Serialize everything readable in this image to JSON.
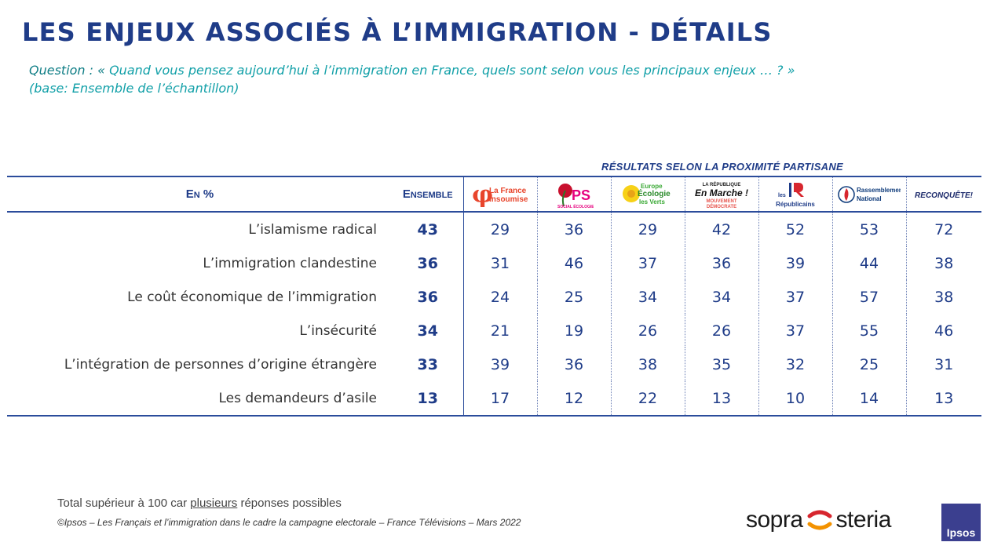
{
  "title": "LES ENJEUX ASSOCIÉS À L’IMMIGRATION - DÉTAILS",
  "question": {
    "lead": "Question : «",
    "text": " Quand vous pensez aujourd’hui à l’immigration en France, quels sont selon vous les principaux enjeux … ? »",
    "base": "(base: Ensemble de l’échantillon)"
  },
  "subtitle": "RÉSULTATS SELON LA PROXIMITÉ PARTISANE",
  "table": {
    "header_label": "En %",
    "ensemble_label": "Ensemble",
    "parties": [
      {
        "name": "La France insoumise",
        "line1": "La France",
        "line2": "insoumise",
        "color": "#e8452c"
      },
      {
        "name": "PS",
        "line1": "PS",
        "line2": "SOCIAL ÉCOLOGIE",
        "color": "#e6007e"
      },
      {
        "name": "Europe Écologie les Verts",
        "line1": "Europe",
        "line2": "Écologie",
        "line3": "les Verts",
        "color": "#3aa935"
      },
      {
        "name": "En Marche !",
        "line0": "LA RÉPUBLIQUE",
        "line1": "En Marche !",
        "line2": "MOUVEMENT",
        "line3": "DÉMOCRATE",
        "color": "#e7554e"
      },
      {
        "name": "Les Républicains",
        "line0": "les",
        "line1": "Républicains",
        "color": "#1f3c88"
      },
      {
        "name": "Rassemblement National",
        "line1": "Rassemblement",
        "line2": "National",
        "color": "#0d3a7a"
      },
      {
        "name": "Reconquête !",
        "line1": "RECONQUÊTE!",
        "color": "#1c2a6b"
      }
    ],
    "rows": [
      {
        "label": "L’islamisme radical",
        "ensemble": "43",
        "values": [
          "29",
          "36",
          "29",
          "42",
          "52",
          "53",
          "72"
        ]
      },
      {
        "label": "L’immigration clandestine",
        "ensemble": "36",
        "values": [
          "31",
          "46",
          "37",
          "36",
          "39",
          "44",
          "38"
        ]
      },
      {
        "label": "Le coût économique de l’immigration",
        "ensemble": "36",
        "values": [
          "24",
          "25",
          "34",
          "34",
          "37",
          "57",
          "38"
        ]
      },
      {
        "label": "L’insécurité",
        "ensemble": "34",
        "values": [
          "21",
          "19",
          "26",
          "26",
          "37",
          "55",
          "46"
        ]
      },
      {
        "label": "L’intégration de personnes d’origine étrangère",
        "ensemble": "33",
        "values": [
          "39",
          "36",
          "38",
          "35",
          "32",
          "25",
          "31"
        ]
      },
      {
        "label": "Les demandeurs d’asile",
        "ensemble": "13",
        "values": [
          "17",
          "12",
          "22",
          "13",
          "10",
          "14",
          "13"
        ]
      }
    ]
  },
  "footer": {
    "note_before": "Total supérieur à 100 car ",
    "note_underlined": "plusieurs",
    "note_after": " réponses possibles",
    "copyright": "©Ipsos – Les Français et l’immigration dans le cadre la campagne electorale  – France Télévisions – Mars 2022"
  },
  "brands": {
    "sopra": "sopra",
    "steria": "steria",
    "ipsos": "Ipsos"
  }
}
